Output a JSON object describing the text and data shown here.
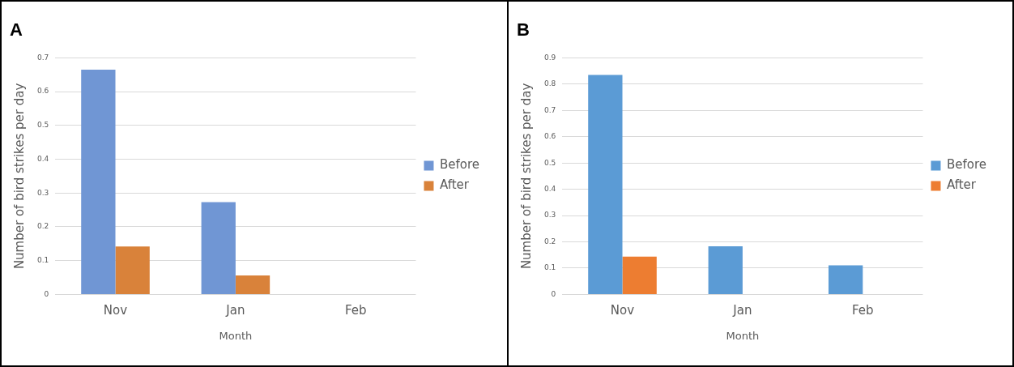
{
  "chart_data": [
    {
      "type": "bar",
      "title": "A",
      "xlabel": "Month",
      "ylabel": "Number of bird strikes per day",
      "categories": [
        "Nov",
        "Jan",
        "Feb"
      ],
      "series": [
        {
          "name": "Before",
          "color": "#7096d4",
          "values": [
            0.665,
            0.273,
            0
          ]
        },
        {
          "name": "After",
          "color": "#d9823a",
          "values": [
            0.142,
            0.056,
            0
          ]
        }
      ],
      "ylim": [
        0,
        0.7
      ],
      "yticks": [
        0,
        0.1,
        0.2,
        0.3,
        0.4,
        0.5,
        0.6,
        0.7
      ],
      "grid": "y",
      "legend": "right"
    },
    {
      "type": "bar",
      "title": "B",
      "xlabel": "Month",
      "ylabel": "Number of bird strikes per day",
      "categories": [
        "Nov",
        "Jan",
        "Feb"
      ],
      "series": [
        {
          "name": "Before",
          "color": "#5b9bd5",
          "values": [
            0.835,
            0.183,
            0.111
          ]
        },
        {
          "name": "After",
          "color": "#ed7d31",
          "values": [
            0.144,
            0,
            0
          ]
        }
      ],
      "ylim": [
        0,
        0.9
      ],
      "yticks": [
        0,
        0.1,
        0.2,
        0.3,
        0.4,
        0.5,
        0.6,
        0.7,
        0.8,
        0.9
      ],
      "grid": "y",
      "legend": "right"
    }
  ]
}
